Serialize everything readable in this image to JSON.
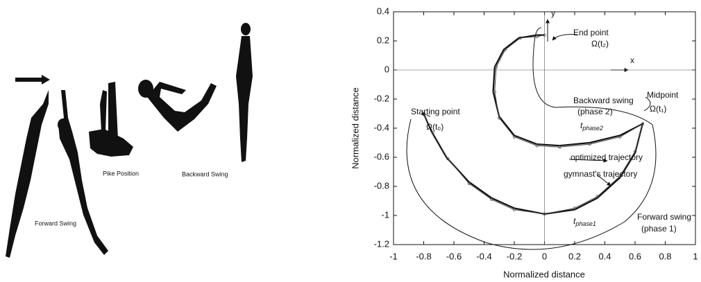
{
  "figure": {
    "labels": [
      "Forward Swing",
      "Pike Position",
      "Backward Swing"
    ]
  },
  "chart_data": {
    "type": "line",
    "xlabel": "Normalized distance",
    "ylabel": "Normalized distance",
    "xlim": [
      -1,
      1
    ],
    "ylim": [
      -1.2,
      0.4
    ],
    "xticks": [
      -1,
      -0.8,
      -0.6,
      -0.4,
      -0.2,
      0,
      0.2,
      0.4,
      0.6,
      0.8,
      1
    ],
    "yticks": [
      -1.2,
      -1,
      -0.8,
      -0.6,
      -0.4,
      -0.2,
      0,
      0.2,
      0.4
    ],
    "series": [
      {
        "name": "gymnast's trajectory",
        "color": "#111111",
        "x": [
          -0.8,
          -0.75,
          -0.65,
          -0.5,
          -0.35,
          -0.2,
          0,
          0.2,
          0.35,
          0.5,
          0.6,
          0.65,
          0.5,
          0.3,
          0.1,
          -0.05,
          -0.2,
          -0.3,
          -0.34,
          -0.33,
          -0.27,
          -0.17,
          -0.05,
          0
        ],
        "values": [
          -0.3,
          -0.42,
          -0.6,
          -0.77,
          -0.88,
          -0.95,
          -0.99,
          -0.96,
          -0.88,
          -0.74,
          -0.57,
          -0.37,
          -0.45,
          -0.5,
          -0.52,
          -0.51,
          -0.45,
          -0.32,
          -0.15,
          0.02,
          0.14,
          0.22,
          0.24,
          0.24
        ]
      },
      {
        "name": "optimized trajectory",
        "color": "#444444",
        "x": [
          -0.8,
          -0.74,
          -0.64,
          -0.5,
          -0.35,
          -0.2,
          0,
          0.2,
          0.35,
          0.5,
          0.6,
          0.65,
          0.5,
          0.3,
          0.1,
          -0.05,
          -0.2,
          -0.3,
          -0.33,
          -0.32,
          -0.26,
          -0.16,
          -0.05,
          0
        ],
        "values": [
          -0.3,
          -0.43,
          -0.61,
          -0.78,
          -0.89,
          -0.96,
          -0.99,
          -0.95,
          -0.87,
          -0.73,
          -0.56,
          -0.37,
          -0.46,
          -0.51,
          -0.53,
          -0.52,
          -0.46,
          -0.33,
          -0.15,
          0.02,
          0.14,
          0.22,
          0.23,
          0.24
        ]
      }
    ],
    "annotations": [
      {
        "text": "End point"
      },
      {
        "text": "Ω(t₂)"
      },
      {
        "text": "Starting point"
      },
      {
        "text": "Ω(t₀)"
      },
      {
        "text": "Backward swing"
      },
      {
        "text": "(phase 2)"
      },
      {
        "text": "Midpoint"
      },
      {
        "text": "Ω(t₁)"
      },
      {
        "text": "t",
        "sub": "phase2"
      },
      {
        "text": "optimized trajectory"
      },
      {
        "text": "gymnast's trajectory"
      },
      {
        "text": "t",
        "sub": "phase1"
      },
      {
        "text": "Forward swing"
      },
      {
        "text": "(phase 1)"
      },
      {
        "text": "x"
      },
      {
        "text": "y"
      }
    ]
  }
}
